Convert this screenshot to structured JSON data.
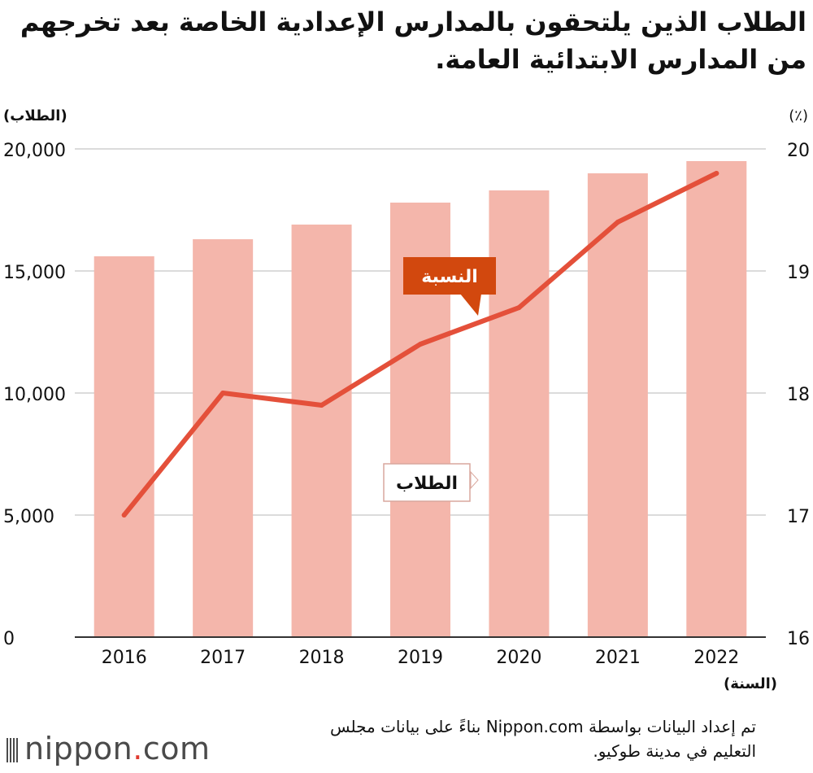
{
  "title": "الطلاب الذين يلتحقون بالمدارس الإعدادية الخاصة بعد تخرجهم من المدارس الابتدائية العامة.",
  "footer_note": "تم إعداد البيانات بواسطة Nippon.com بناءً على بيانات  مجلس التعليم في مدينة طوكيو.",
  "logo": {
    "name": "nippon",
    "dot": ".",
    "domain": "com"
  },
  "colors": {
    "bar": "#f4b6ab",
    "line": "#e4503a",
    "callout_ratio": "#d2480e",
    "grid": "#cfcfcf",
    "axis": "#333333"
  },
  "chart_data": {
    "type": "bar+line",
    "categories": [
      "2016",
      "2017",
      "2018",
      "2019",
      "2020",
      "2021",
      "2022"
    ],
    "series": [
      {
        "name": "الطلاب",
        "type": "bar",
        "axis": "left",
        "values": [
          15600,
          16300,
          16900,
          17800,
          18300,
          19000,
          19500
        ]
      },
      {
        "name": "النسبة",
        "type": "line",
        "axis": "right",
        "values": [
          17.0,
          18.0,
          17.9,
          18.4,
          18.7,
          19.4,
          19.8
        ]
      }
    ],
    "y_left": {
      "label": "(الطلاب)",
      "min": 0,
      "max": 20000,
      "ticks": [
        0,
        5000,
        10000,
        15000,
        20000
      ],
      "tick_labels": [
        "0",
        "5,000",
        "10,000",
        "15,000",
        "20,000"
      ]
    },
    "y_right": {
      "label": "(٪)",
      "min": 16,
      "max": 20,
      "ticks": [
        16,
        17,
        18,
        19,
        20
      ],
      "tick_labels": [
        "16",
        "17",
        "18",
        "19",
        "20"
      ]
    },
    "xlabel": "(السنة)",
    "grid": true
  }
}
